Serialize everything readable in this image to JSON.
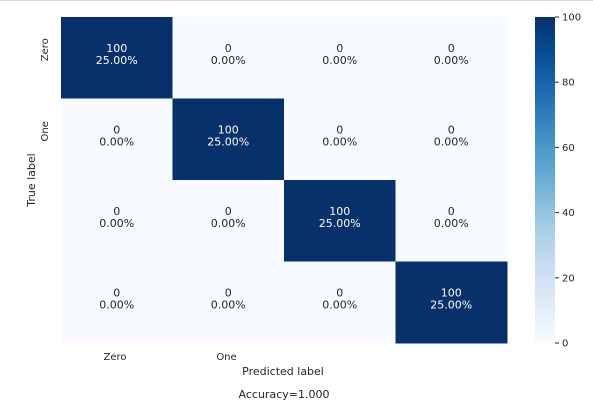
{
  "chart_data": {
    "type": "heatmap",
    "x_categories": [
      "Zero",
      "One",
      "",
      ""
    ],
    "y_categories": [
      "Zero",
      "One",
      "",
      ""
    ],
    "values": [
      [
        100,
        0,
        0,
        0
      ],
      [
        0,
        100,
        0,
        0
      ],
      [
        0,
        0,
        100,
        0
      ],
      [
        0,
        0,
        0,
        100
      ]
    ],
    "percent_labels": [
      [
        "25.00%",
        "0.00%",
        "0.00%",
        "0.00%"
      ],
      [
        "0.00%",
        "25.00%",
        "0.00%",
        "0.00%"
      ],
      [
        "0.00%",
        "0.00%",
        "25.00%",
        "0.00%"
      ],
      [
        "0.00%",
        "0.00%",
        "0.00%",
        "25.00%"
      ]
    ],
    "xlabel": "Predicted label",
    "ylabel": "True label",
    "caption": "Accuracy=1.000",
    "colorbar": {
      "min": 0,
      "max": 100,
      "ticks": [
        0,
        20,
        40,
        60,
        80,
        100
      ]
    },
    "colormap": {
      "low": "#f7fbff",
      "mid": "#6baed6",
      "high": "#08306b"
    }
  }
}
